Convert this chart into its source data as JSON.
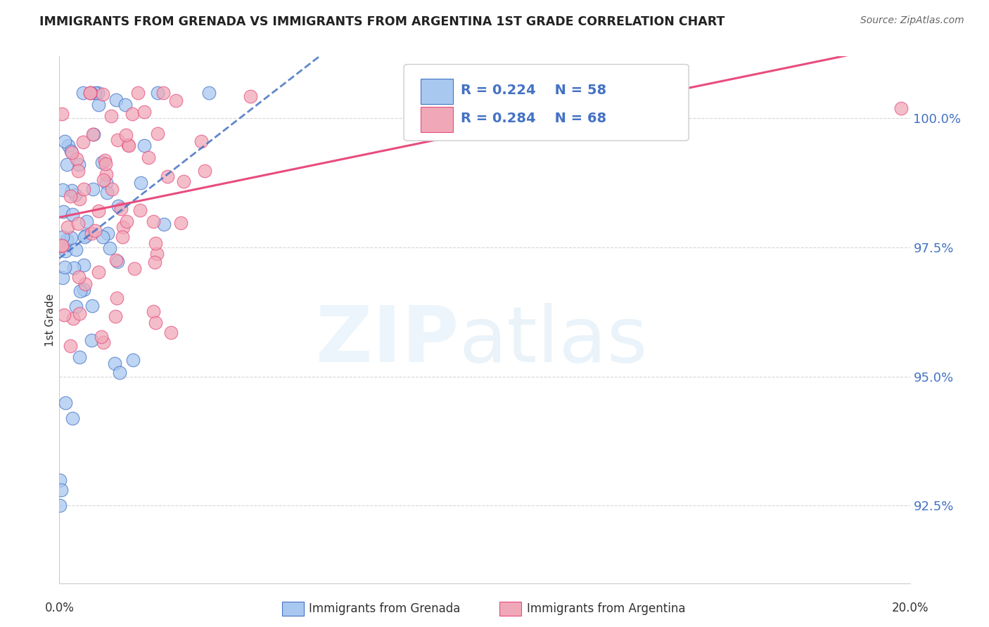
{
  "title": "IMMIGRANTS FROM GRENADA VS IMMIGRANTS FROM ARGENTINA 1ST GRADE CORRELATION CHART",
  "source": "Source: ZipAtlas.com",
  "ylabel": "1st Grade",
  "y_ticks": [
    92.5,
    95.0,
    97.5,
    100.0
  ],
  "y_tick_labels": [
    "92.5%",
    "95.0%",
    "97.5%",
    "100.0%"
  ],
  "xlim": [
    0.0,
    20.0
  ],
  "ylim": [
    91.0,
    101.2
  ],
  "grenada_R": 0.224,
  "grenada_N": 58,
  "argentina_R": 0.284,
  "argentina_N": 68,
  "grenada_color": "#a8c8f0",
  "argentina_color": "#f0a8b8",
  "grenada_line_color": "#4472C4",
  "argentina_line_color": "#E84C7D",
  "background_color": "#ffffff",
  "grid_color": "#cccccc"
}
